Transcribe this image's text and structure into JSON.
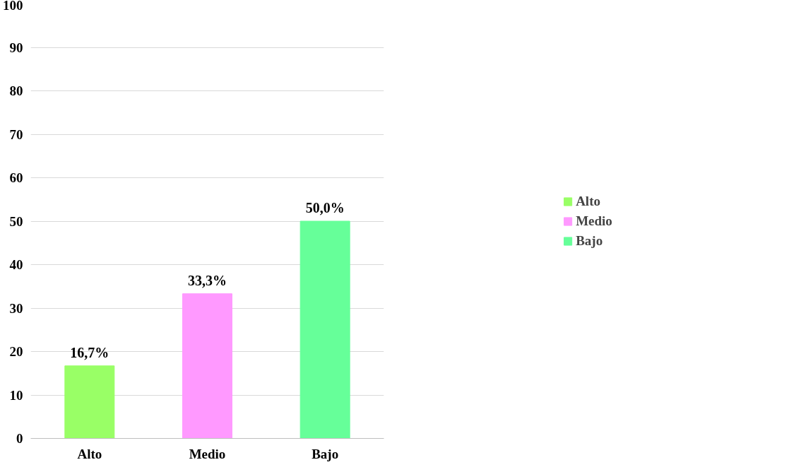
{
  "chart_data": {
    "type": "bar",
    "categories": [
      "Alto",
      "Medio",
      "Bajo"
    ],
    "series": [
      {
        "name": "Alto",
        "color": "#99ff66",
        "values": [
          16.7,
          null,
          null
        ],
        "value_labels": [
          "16,7%",
          null,
          null
        ]
      },
      {
        "name": "Medio",
        "color": "#ff99ff",
        "values": [
          null,
          33.3,
          null
        ],
        "value_labels": [
          null,
          "33,3%",
          null
        ]
      },
      {
        "name": "Bajo",
        "color": "#66ff99",
        "values": [
          null,
          null,
          50.0
        ],
        "value_labels": [
          null,
          null,
          "50,0%"
        ]
      }
    ],
    "ylim": [
      0,
      100
    ],
    "yticks": [
      0,
      10,
      20,
      30,
      40,
      50,
      60,
      70,
      80,
      90,
      100
    ],
    "grid": "y",
    "legend": "right"
  }
}
